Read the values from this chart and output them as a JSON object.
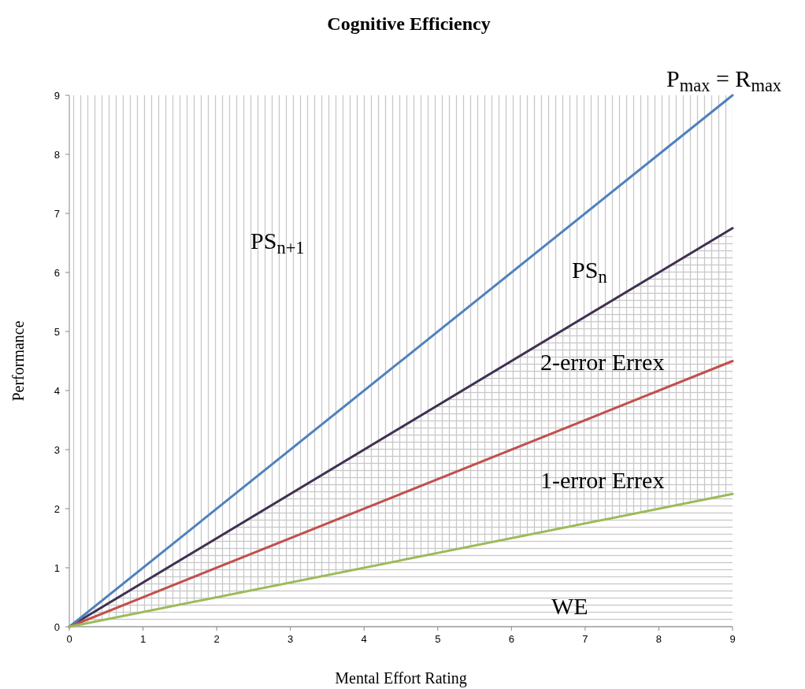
{
  "chart_data": {
    "type": "line",
    "title": "Cognitive Efficiency",
    "xlabel": "Mental Effort Rating",
    "ylabel": "Performance",
    "x": [
      0,
      9
    ],
    "series": [
      {
        "color": "#4f81bd",
        "values": [
          0,
          9
        ]
      },
      {
        "type": "area",
        "color": "#403152",
        "values": [
          0,
          6.75
        ]
      },
      {
        "color": "#c0504d",
        "values": [
          0,
          4.5
        ]
      },
      {
        "color": "#9bbb59",
        "values": [
          0,
          2.25
        ]
      }
    ],
    "xlim": [
      0,
      9
    ],
    "ylim": [
      0,
      9
    ],
    "xticks": [
      0,
      1,
      2,
      3,
      4,
      5,
      6,
      7,
      8,
      9
    ],
    "yticks": [
      0,
      1,
      2,
      3,
      4,
      5,
      6,
      7,
      8,
      9
    ],
    "grid": false,
    "marker": "none",
    "line_style": "solid",
    "annotations": [
      "PS$_{n+1}$",
      "PS$_{n}$",
      "2-error Errex",
      "1-error Errex",
      "WE",
      "P$_{max}$ = R$_{max}$"
    ]
  }
}
